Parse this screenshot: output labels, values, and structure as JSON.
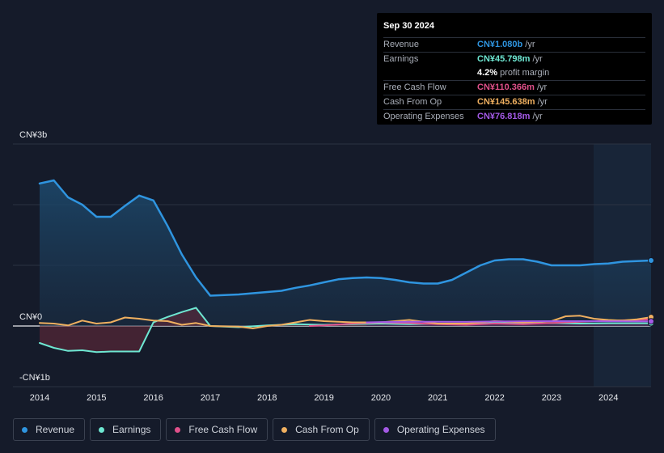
{
  "tooltip": {
    "date": "Sep 30 2024",
    "rows": [
      {
        "label": "Revenue",
        "value": "CN¥1.080b",
        "unit": "/yr",
        "color": "#2f95e0"
      },
      {
        "label": "Earnings",
        "value": "CN¥45.798m",
        "unit": "/yr",
        "color": "#6ee7d2"
      },
      {
        "label": "",
        "value": "4.2%",
        "unit": "profit margin",
        "color": "#ffffff"
      },
      {
        "label": "Free Cash Flow",
        "value": "CN¥110.366m",
        "unit": "/yr",
        "color": "#e0508a"
      },
      {
        "label": "Cash From Op",
        "value": "CN¥145.638m",
        "unit": "/yr",
        "color": "#f0b060"
      },
      {
        "label": "Operating Expenses",
        "value": "CN¥76.818m",
        "unit": "/yr",
        "color": "#a45ae6"
      }
    ]
  },
  "chart_data": {
    "type": "area",
    "title": "",
    "xlabel": "",
    "ylabel": "",
    "y_axis_labels": [
      {
        "value": 3000,
        "label": "CN¥3b"
      },
      {
        "value": 0,
        "label": "CN¥0"
      },
      {
        "value": -1000,
        "label": "-CN¥1b"
      }
    ],
    "ylim": [
      -1000,
      3000
    ],
    "xlim": [
      2014.0,
      2024.75
    ],
    "x_ticks": [
      2014,
      2015,
      2016,
      2017,
      2018,
      2019,
      2020,
      2021,
      2022,
      2023,
      2024
    ],
    "grid": "horizontal",
    "legend_position": "bottom-left",
    "highlight_range": [
      2023.75,
      2024.75
    ],
    "units": "CN¥ millions",
    "series": [
      {
        "name": "Revenue",
        "color": "#2f95e0",
        "fill": true,
        "x": [
          2014.0,
          2014.25,
          2014.5,
          2014.75,
          2015.0,
          2015.25,
          2015.5,
          2015.75,
          2016.0,
          2016.25,
          2016.5,
          2016.75,
          2017.0,
          2017.25,
          2017.5,
          2017.75,
          2018.0,
          2018.25,
          2018.5,
          2018.75,
          2019.0,
          2019.25,
          2019.5,
          2019.75,
          2020.0,
          2020.25,
          2020.5,
          2020.75,
          2021.0,
          2021.25,
          2021.5,
          2021.75,
          2022.0,
          2022.25,
          2022.5,
          2022.75,
          2023.0,
          2023.25,
          2023.5,
          2023.75,
          2024.0,
          2024.25,
          2024.5,
          2024.75
        ],
        "y": [
          2350,
          2400,
          2120,
          2000,
          1800,
          1800,
          1980,
          2150,
          2070,
          1650,
          1180,
          800,
          500,
          510,
          520,
          540,
          560,
          580,
          630,
          670,
          720,
          770,
          790,
          800,
          790,
          760,
          720,
          700,
          700,
          760,
          880,
          1000,
          1080,
          1100,
          1100,
          1060,
          1000,
          1000,
          1000,
          1020,
          1030,
          1060,
          1070,
          1080
        ]
      },
      {
        "name": "Earnings",
        "color": "#6ee7d2",
        "fill": true,
        "x": [
          2014.0,
          2014.25,
          2014.5,
          2014.75,
          2015.0,
          2015.25,
          2015.5,
          2015.75,
          2016.0,
          2016.25,
          2016.5,
          2016.75,
          2017.0,
          2017.5,
          2018.0,
          2018.5,
          2019.0,
          2019.5,
          2020.0,
          2020.5,
          2021.0,
          2021.5,
          2022.0,
          2022.5,
          2023.0,
          2023.5,
          2024.0,
          2024.5,
          2024.75
        ],
        "y": [
          -280,
          -360,
          -410,
          -400,
          -430,
          -420,
          -420,
          -420,
          60,
          150,
          230,
          300,
          0,
          -20,
          10,
          30,
          20,
          30,
          40,
          30,
          40,
          30,
          50,
          40,
          50,
          40,
          45,
          45,
          46
        ]
      },
      {
        "name": "Free Cash Flow",
        "color": "#e0508a",
        "fill": false,
        "x": [
          2018.75,
          2019.0,
          2019.5,
          2020.0,
          2020.5,
          2021.0,
          2021.5,
          2022.0,
          2022.5,
          2023.0,
          2023.5,
          2024.0,
          2024.5,
          2024.75
        ],
        "y": [
          0,
          10,
          40,
          60,
          50,
          30,
          20,
          40,
          30,
          50,
          70,
          90,
          100,
          110
        ]
      },
      {
        "name": "Cash From Op",
        "color": "#f0b060",
        "fill": false,
        "x": [
          2014.0,
          2014.25,
          2014.5,
          2014.75,
          2015.0,
          2015.25,
          2015.5,
          2015.75,
          2016.0,
          2016.25,
          2016.5,
          2016.75,
          2017.0,
          2017.5,
          2017.75,
          2018.0,
          2018.25,
          2018.5,
          2018.75,
          2019.0,
          2019.5,
          2020.0,
          2020.5,
          2021.0,
          2021.5,
          2022.0,
          2022.5,
          2023.0,
          2023.25,
          2023.5,
          2023.75,
          2024.0,
          2024.25,
          2024.5,
          2024.75
        ],
        "y": [
          50,
          40,
          10,
          90,
          40,
          60,
          140,
          120,
          90,
          80,
          20,
          50,
          0,
          -10,
          -40,
          0,
          20,
          60,
          100,
          80,
          60,
          60,
          100,
          40,
          40,
          80,
          60,
          80,
          160,
          170,
          120,
          100,
          90,
          110,
          146
        ]
      },
      {
        "name": "Operating Expenses",
        "color": "#a45ae6",
        "fill": true,
        "x": [
          2019.75,
          2020.0,
          2020.5,
          2021.0,
          2021.5,
          2022.0,
          2022.5,
          2023.0,
          2023.5,
          2024.0,
          2024.5,
          2024.75
        ],
        "y": [
          60,
          65,
          70,
          70,
          68,
          75,
          78,
          80,
          80,
          78,
          77,
          77
        ]
      }
    ]
  },
  "legend": [
    {
      "label": "Revenue",
      "color": "#2f95e0"
    },
    {
      "label": "Earnings",
      "color": "#6ee7d2"
    },
    {
      "label": "Free Cash Flow",
      "color": "#e0508a"
    },
    {
      "label": "Cash From Op",
      "color": "#f0b060"
    },
    {
      "label": "Operating Expenses",
      "color": "#a45ae6"
    }
  ]
}
